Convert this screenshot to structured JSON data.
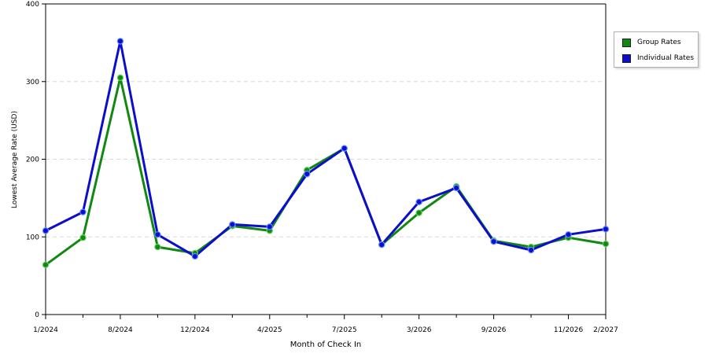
{
  "chart_data": {
    "type": "line",
    "xlabel": "Month of Check In",
    "ylabel": "Lowest Average Rate (USD)",
    "ylim": [
      0,
      400
    ],
    "yticks": [
      0,
      100,
      200,
      300,
      400
    ],
    "grid": "horizontal dashed",
    "legend_position": "top-right",
    "x_tick_labels": [
      "1/2024",
      "8/2024",
      "12/2024",
      "4/2025",
      "7/2025",
      "3/2026",
      "9/2026",
      "11/2026",
      "2/2027"
    ],
    "x": [
      "1/2024",
      "",
      "8/2024",
      "",
      "12/2024",
      "",
      "4/2025",
      "",
      "7/2025",
      "",
      "3/2026",
      "",
      "9/2026",
      "",
      "11/2026",
      "2/2027"
    ],
    "series": [
      {
        "name": "Group Rates",
        "color": "#118811",
        "values": [
          64,
          99,
          305,
          87,
          79,
          114,
          108,
          186,
          214,
          90,
          131,
          165,
          95,
          87,
          99,
          91
        ]
      },
      {
        "name": "Individual Rates",
        "color": "#0d0dcc",
        "values": [
          108,
          132,
          352,
          103,
          75,
          116,
          113,
          181,
          214,
          90,
          145,
          163,
          94,
          83,
          103,
          110
        ]
      }
    ]
  }
}
